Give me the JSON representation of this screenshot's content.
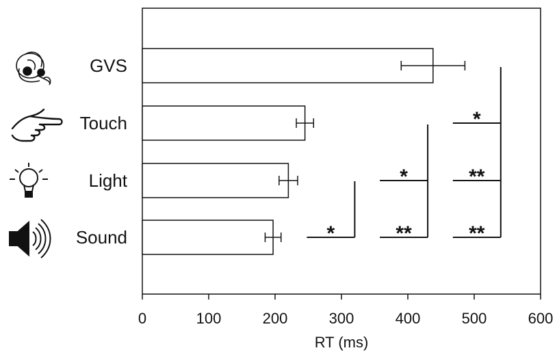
{
  "chart_data": {
    "type": "bar",
    "orientation": "horizontal",
    "categories": [
      "GVS",
      "Touch",
      "Light",
      "Sound"
    ],
    "values": [
      438,
      245,
      220,
      197
    ],
    "error": [
      48,
      13,
      14,
      12
    ],
    "xlabel": "RT (ms)",
    "xlim": [
      0,
      600
    ],
    "xticks": [
      0,
      100,
      200,
      300,
      400,
      500,
      600
    ],
    "grid": false,
    "icons": [
      "gvs-head-icon",
      "pointing-hand-icon",
      "light-bulb-icon",
      "speaker-icon"
    ],
    "significance": [
      {
        "x": 320,
        "rows": [
          "Sound"
        ],
        "labels": [
          "*"
        ]
      },
      {
        "x": 430,
        "rows": [
          "Light",
          "Sound"
        ],
        "labels": [
          "*",
          "**"
        ]
      },
      {
        "x": 540,
        "rows": [
          "Touch",
          "Light",
          "Sound"
        ],
        "labels": [
          "*",
          "**",
          "**"
        ]
      }
    ]
  }
}
